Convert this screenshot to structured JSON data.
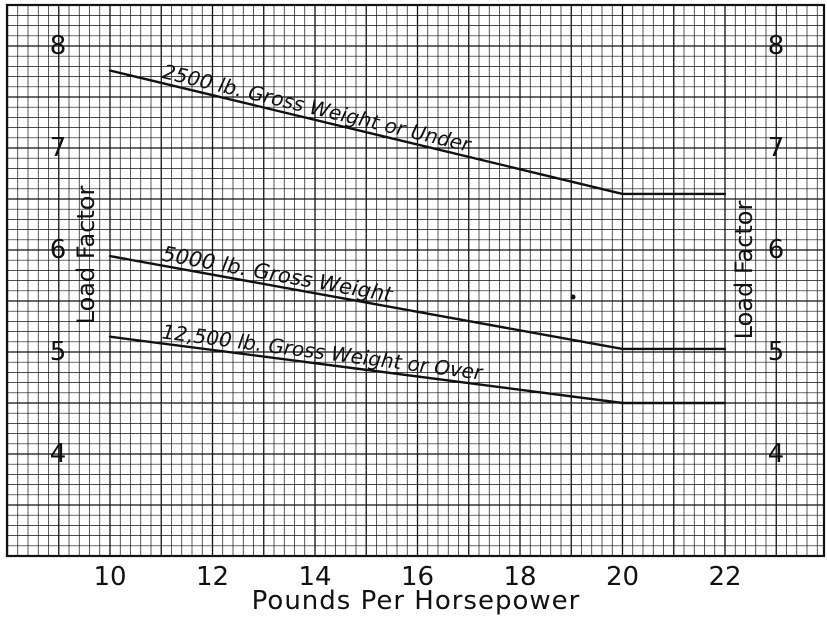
{
  "chart_data": {
    "type": "line",
    "title": "",
    "xlabel": "Pounds Per Horsepower",
    "ylabel": "Load Factor",
    "xlim": [
      8,
      24
    ],
    "ylim": [
      3,
      8.3
    ],
    "x_ticks": [
      "10",
      "12",
      "14",
      "16",
      "18",
      "20",
      "22"
    ],
    "y_ticks": [
      "4",
      "5",
      "6",
      "7",
      "8"
    ],
    "grid": true,
    "series": [
      {
        "name": "2500 lb. Gross Weight or Under",
        "x": [
          10,
          20,
          22
        ],
        "y": [
          7.76,
          6.55,
          6.55
        ]
      },
      {
        "name": "5000 lb. Gross Weight",
        "x": [
          10,
          20,
          22
        ],
        "y": [
          5.94,
          5.03,
          5.03
        ]
      },
      {
        "name": "12,500 lb. Gross Weight or Over",
        "x": [
          10,
          20,
          22
        ],
        "y": [
          5.15,
          4.5,
          4.5
        ]
      }
    ]
  }
}
